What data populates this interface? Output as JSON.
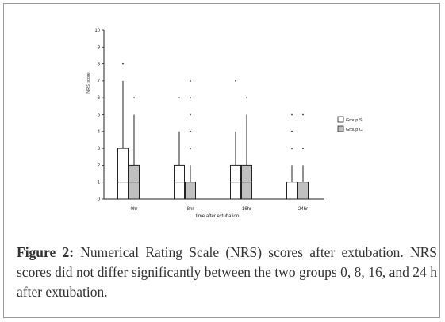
{
  "chart_data": {
    "type": "boxplot",
    "categories": [
      "0hr",
      "8hr",
      "16hr",
      "24hr"
    ],
    "xlabel": "time after extubation",
    "ylabel": "NRS score",
    "ylim": [
      0,
      10
    ],
    "yticks": [
      "0",
      "1",
      "2",
      "3",
      "4",
      "5",
      "6",
      "7",
      "8",
      "9",
      "10"
    ],
    "legend_position": "right",
    "series": [
      {
        "name": "Group S",
        "color": "#ffffff",
        "boxes": [
          {
            "category": "0hr",
            "min": 0,
            "q1": 0,
            "median": 1,
            "q3": 3,
            "max": 7,
            "outliers": [
              8
            ]
          },
          {
            "category": "8hr",
            "min": 0,
            "q1": 0,
            "median": 1,
            "q3": 2,
            "max": 4,
            "outliers": [
              6
            ]
          },
          {
            "category": "16hr",
            "min": 0,
            "q1": 0,
            "median": 1,
            "q3": 2,
            "max": 4,
            "outliers": [
              7
            ]
          },
          {
            "category": "24hr",
            "min": 0,
            "q1": 0,
            "median": 0,
            "q3": 1,
            "max": 2,
            "outliers": [
              3,
              4,
              5
            ]
          }
        ]
      },
      {
        "name": "Group C",
        "color": "#c0c0c0",
        "boxes": [
          {
            "category": "0hr",
            "min": 0,
            "q1": 0,
            "median": 1,
            "q3": 2,
            "max": 5,
            "outliers": [
              6
            ]
          },
          {
            "category": "8hr",
            "min": 0,
            "q1": 0,
            "median": 0,
            "q3": 1,
            "max": 2,
            "outliers": [
              3,
              4,
              5,
              6,
              7
            ]
          },
          {
            "category": "16hr",
            "min": 0,
            "q1": 0,
            "median": 1,
            "q3": 2,
            "max": 5,
            "outliers": [
              6
            ]
          },
          {
            "category": "24hr",
            "min": 0,
            "q1": 0,
            "median": 0,
            "q3": 1,
            "max": 2,
            "outliers": [
              3,
              5
            ]
          }
        ]
      }
    ]
  },
  "caption": {
    "label": "Figure 2:",
    "text": "Numerical Rating Scale (NRS) scores after extubation. NRS scores did not differ significantly between the two groups 0, 8, 16, and 24 h after extubation."
  }
}
